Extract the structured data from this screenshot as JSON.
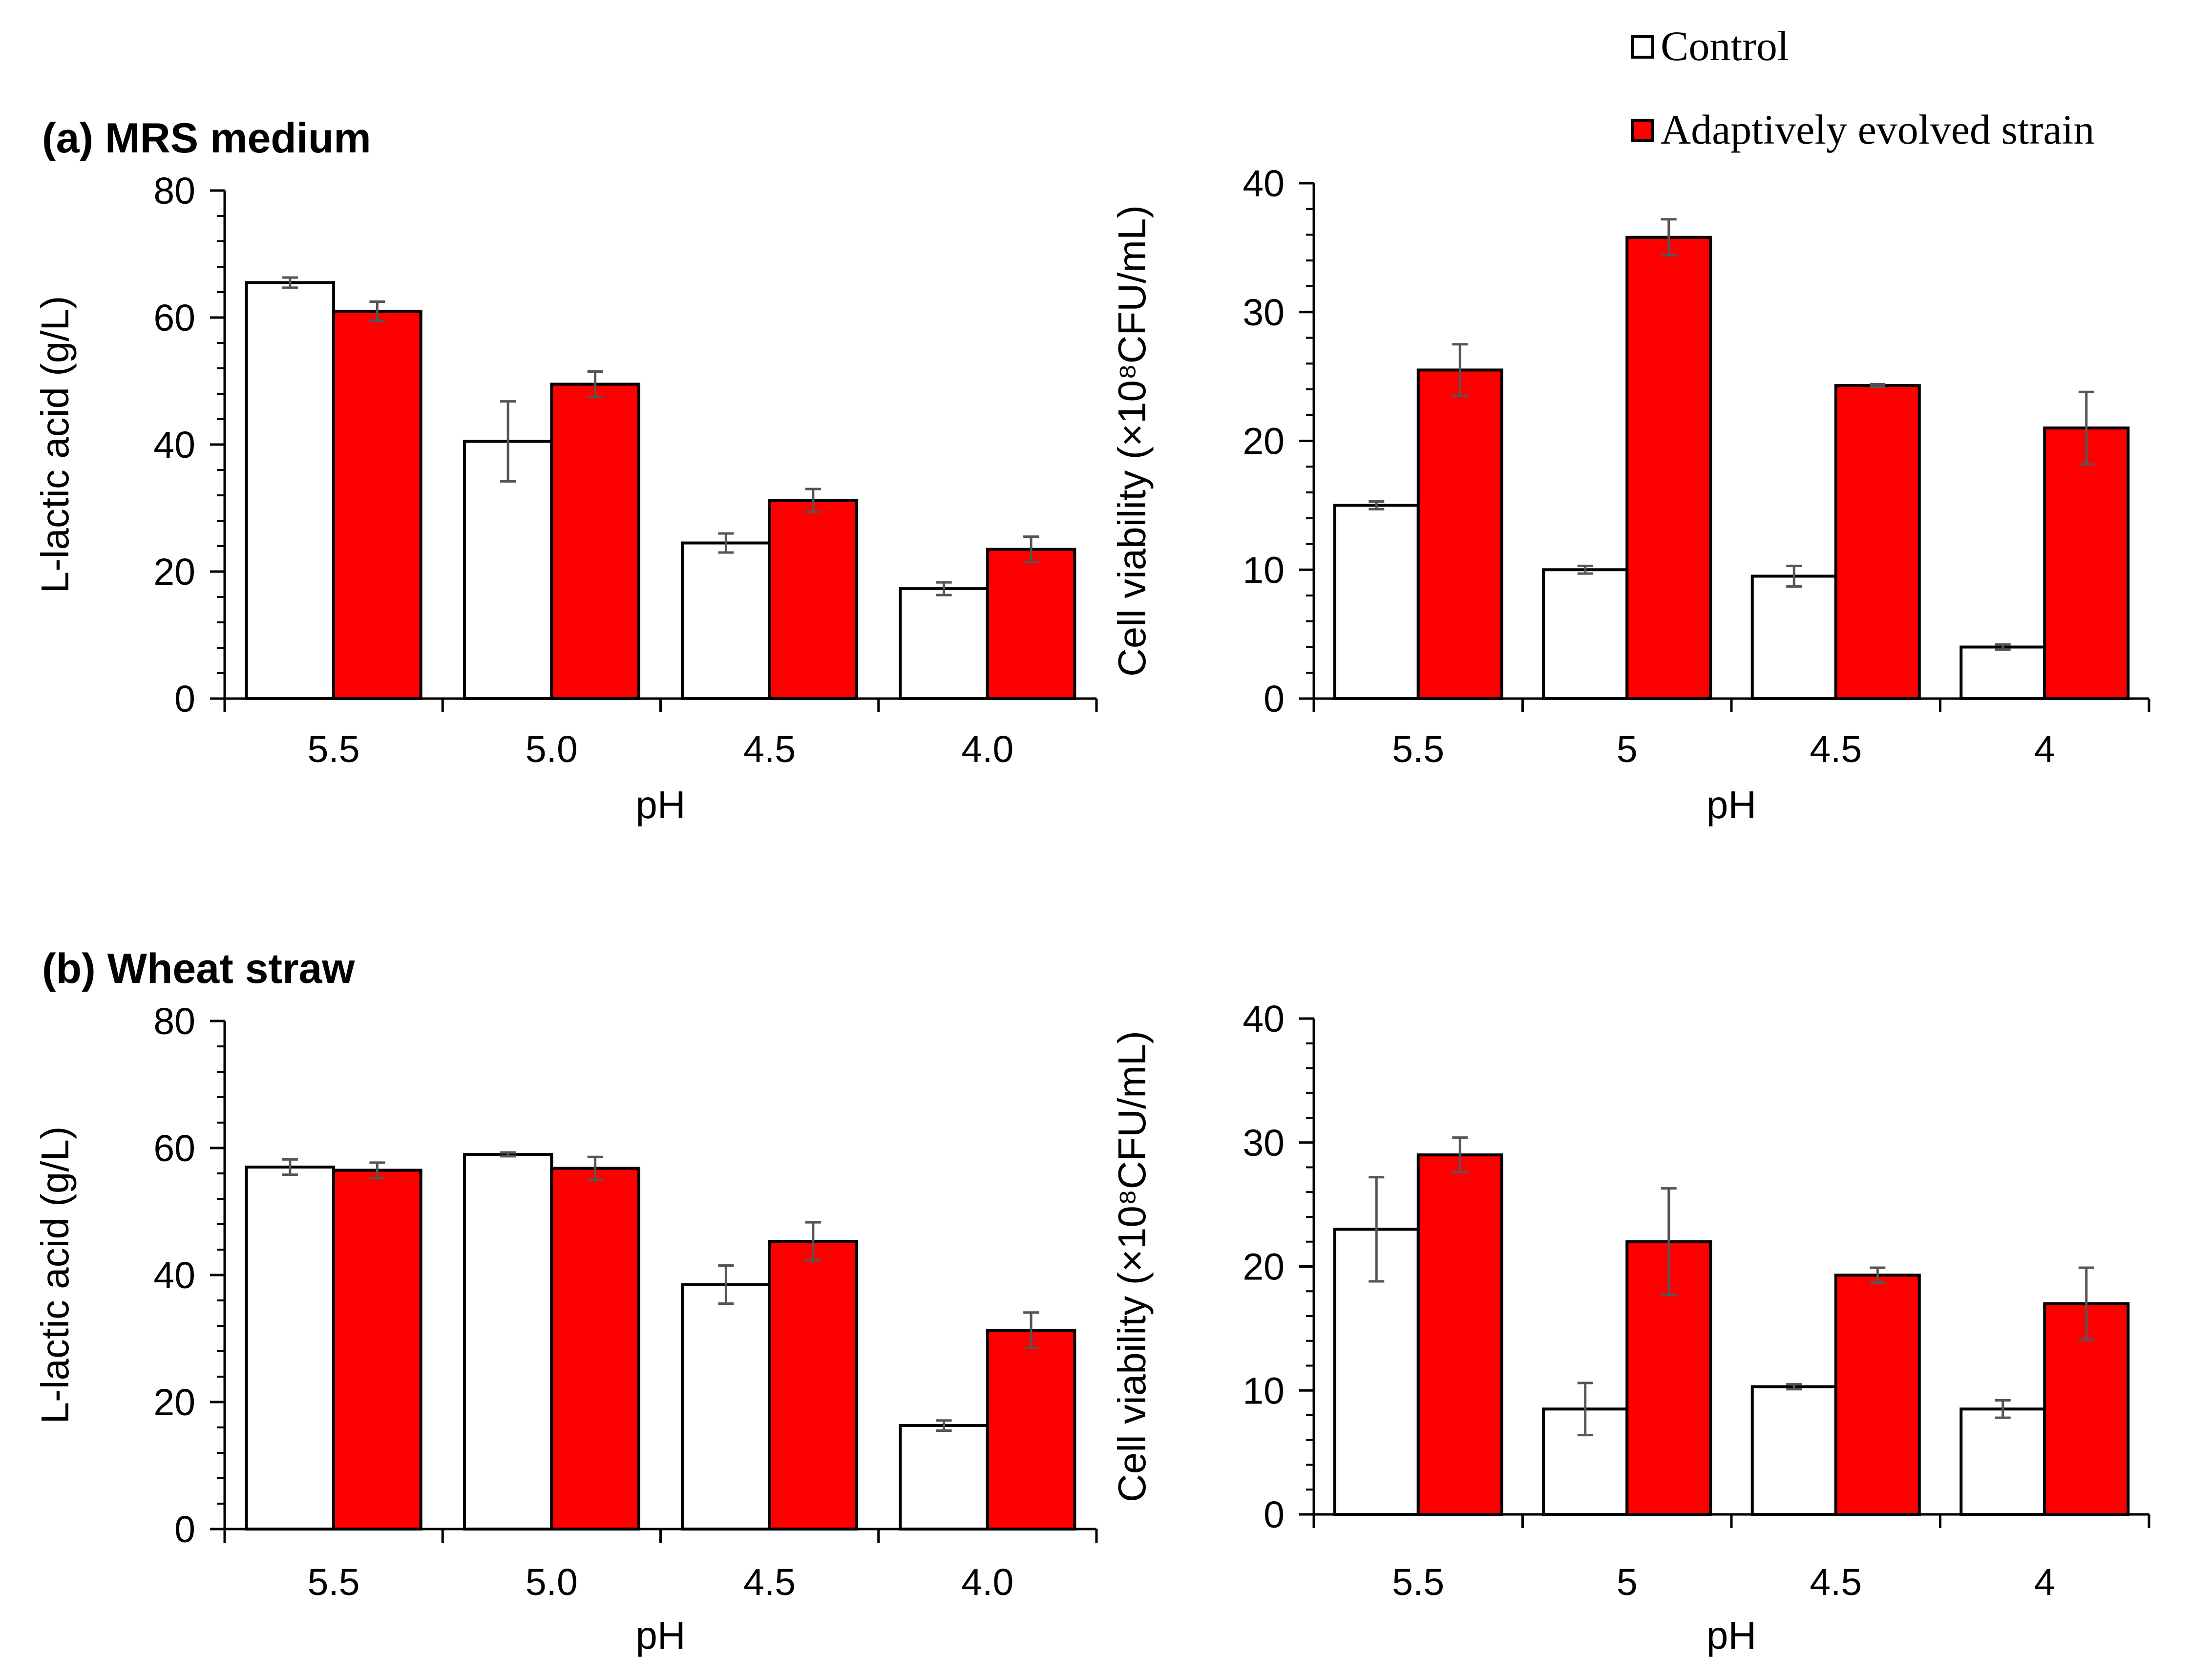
{
  "legend": {
    "items": [
      {
        "label": "Control",
        "color": "#ffffff"
      },
      {
        "label": "Adaptively evolved strain",
        "color": "#ff0000"
      }
    ]
  },
  "chart_data": [
    {
      "type": "bar",
      "panel_title": "(a) MRS medium",
      "categories": [
        "5.5",
        "5.0",
        "4.5",
        "4.0"
      ],
      "xlabel": "pH",
      "ylabel": "L-lactic acid (g/L)",
      "ylim": [
        0,
        80
      ],
      "yticks": [
        0,
        20,
        40,
        60,
        80
      ],
      "series": [
        {
          "name": "Control",
          "values": [
            65.5,
            40.5,
            24.5,
            17.3
          ],
          "errors": [
            0.8,
            6.3,
            1.5,
            1.0
          ]
        },
        {
          "name": "Adaptively evolved strain",
          "values": [
            61.0,
            49.5,
            31.2,
            23.5
          ],
          "errors": [
            1.5,
            2.0,
            1.8,
            2.0
          ]
        }
      ]
    },
    {
      "type": "bar",
      "panel_title": "",
      "categories": [
        "5.5",
        "5",
        "4.5",
        "4"
      ],
      "xlabel": "pH",
      "ylabel": "Cell viability (×10⁸CFU/mL)",
      "ylim": [
        0,
        40
      ],
      "yticks": [
        0,
        10,
        20,
        30,
        40
      ],
      "series": [
        {
          "name": "Control",
          "values": [
            15.0,
            10.0,
            9.5,
            4.0
          ],
          "errors": [
            0.3,
            0.3,
            0.8,
            0.2
          ]
        },
        {
          "name": "Adaptively evolved strain",
          "values": [
            25.5,
            35.8,
            24.3,
            21.0
          ],
          "errors": [
            2.0,
            1.4,
            0.1,
            2.8
          ]
        }
      ]
    },
    {
      "type": "bar",
      "panel_title": "(b) Wheat straw",
      "categories": [
        "5.5",
        "5.0",
        "4.5",
        "4.0"
      ],
      "xlabel": "pH",
      "ylabel": "L-lactic acid (g/L)",
      "ylim": [
        0,
        80
      ],
      "yticks": [
        0,
        20,
        40,
        60,
        80
      ],
      "series": [
        {
          "name": "Control",
          "values": [
            57.0,
            59.0,
            38.5,
            16.3
          ],
          "errors": [
            1.2,
            0.3,
            3.0,
            0.8
          ]
        },
        {
          "name": "Adaptively evolved strain",
          "values": [
            56.5,
            56.8,
            45.3,
            31.3
          ],
          "errors": [
            1.2,
            1.8,
            3.0,
            2.8
          ]
        }
      ]
    },
    {
      "type": "bar",
      "panel_title": "",
      "categories": [
        "5.5",
        "5",
        "4.5",
        "4"
      ],
      "xlabel": "pH",
      "ylabel": "Cell viability (×10⁸CFU/mL)",
      "ylim": [
        0,
        40
      ],
      "yticks": [
        0,
        10,
        20,
        30,
        40
      ],
      "series": [
        {
          "name": "Control",
          "values": [
            23.0,
            8.5,
            10.3,
            8.5
          ],
          "errors": [
            4.2,
            2.1,
            0.2,
            0.7
          ]
        },
        {
          "name": "Adaptively evolved strain",
          "values": [
            29.0,
            22.0,
            19.3,
            17.0
          ],
          "errors": [
            1.4,
            4.3,
            0.6,
            2.9
          ]
        }
      ]
    }
  ]
}
